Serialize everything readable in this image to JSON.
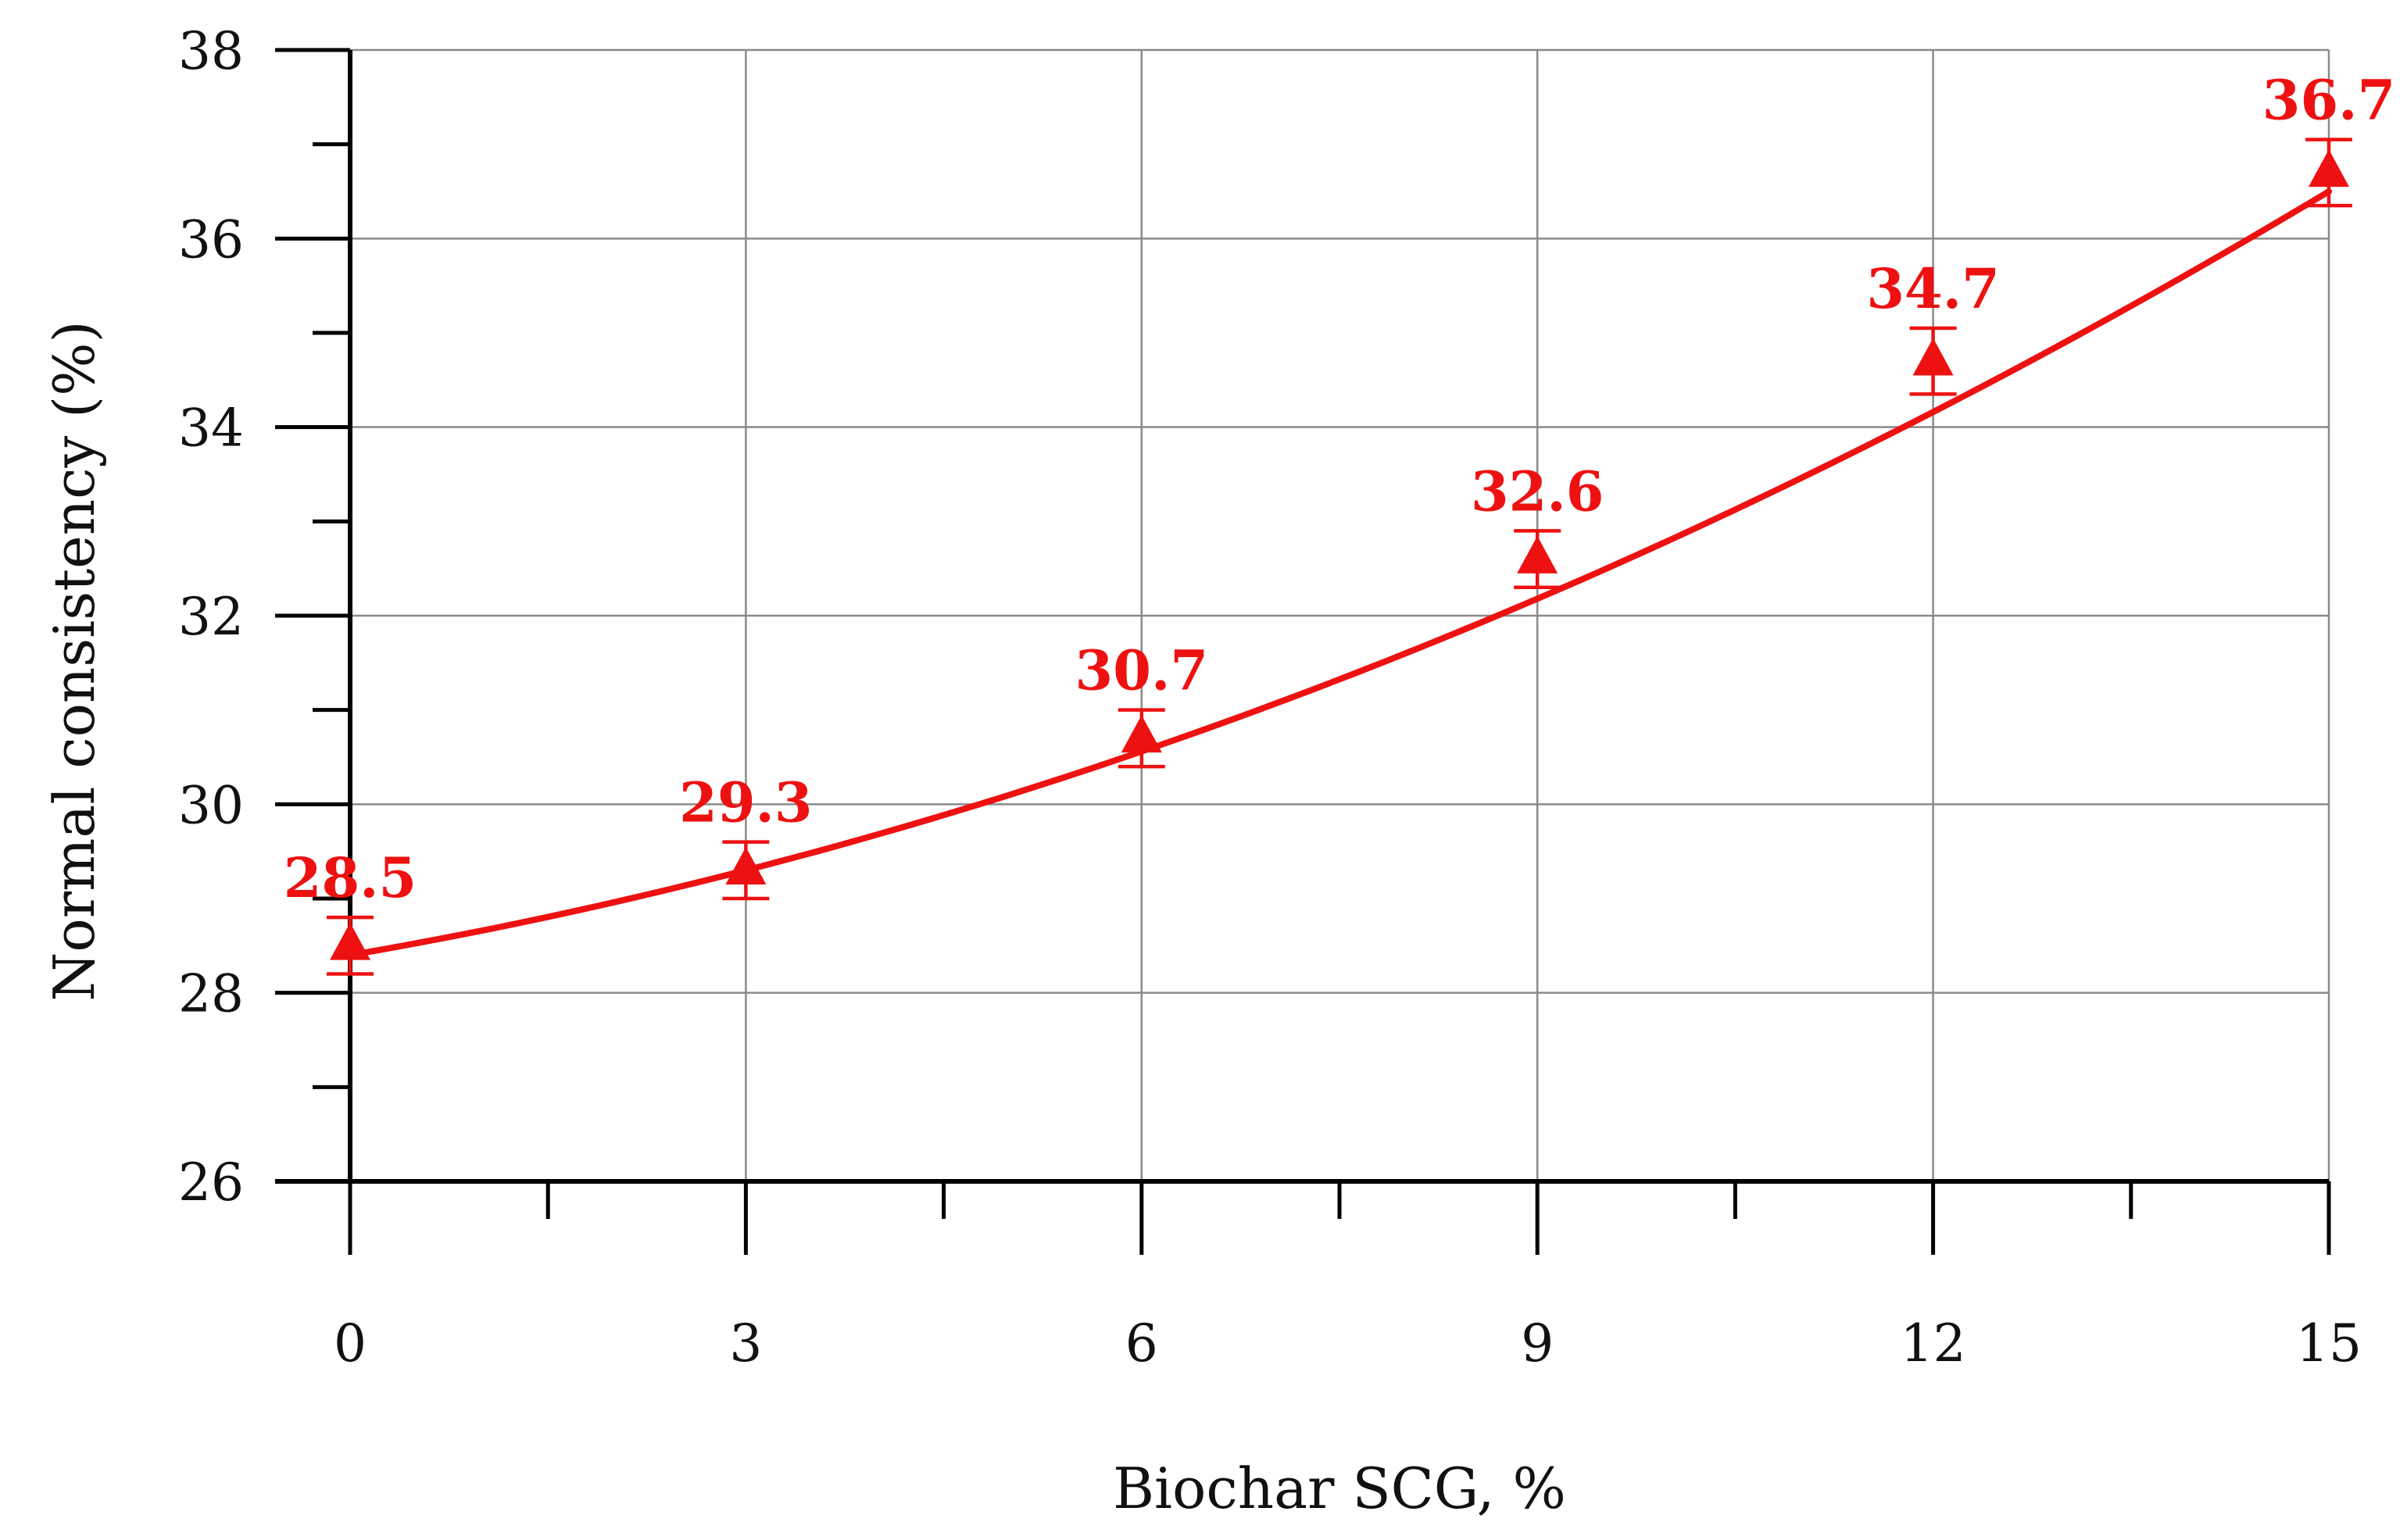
{
  "chart_data": {
    "type": "scatter",
    "xlabel": "Biochar SCG, %",
    "ylabel": "Normal consistency (%)",
    "xlim": [
      0,
      15
    ],
    "ylim": [
      26,
      38
    ],
    "x_ticks": [
      0,
      3,
      6,
      9,
      12,
      15
    ],
    "y_ticks": [
      26,
      28,
      30,
      32,
      34,
      36,
      38
    ],
    "grid": true,
    "legend": "none",
    "marker": "triangle",
    "color": "#ee1111",
    "series": [
      {
        "x": [
          0,
          3,
          6,
          9,
          12,
          15
        ],
        "values": [
          28.5,
          29.3,
          30.7,
          32.6,
          34.7,
          36.7
        ],
        "error": [
          0.3,
          0.3,
          0.3,
          0.3,
          0.35,
          0.35
        ],
        "labels": [
          "28.5",
          "29.3",
          "30.7",
          "32.6",
          "34.7",
          "36.7"
        ]
      }
    ],
    "trendline": {
      "type": "polynomial",
      "coefficients": [
        28.4,
        0.24,
        0.02
      ]
    }
  }
}
